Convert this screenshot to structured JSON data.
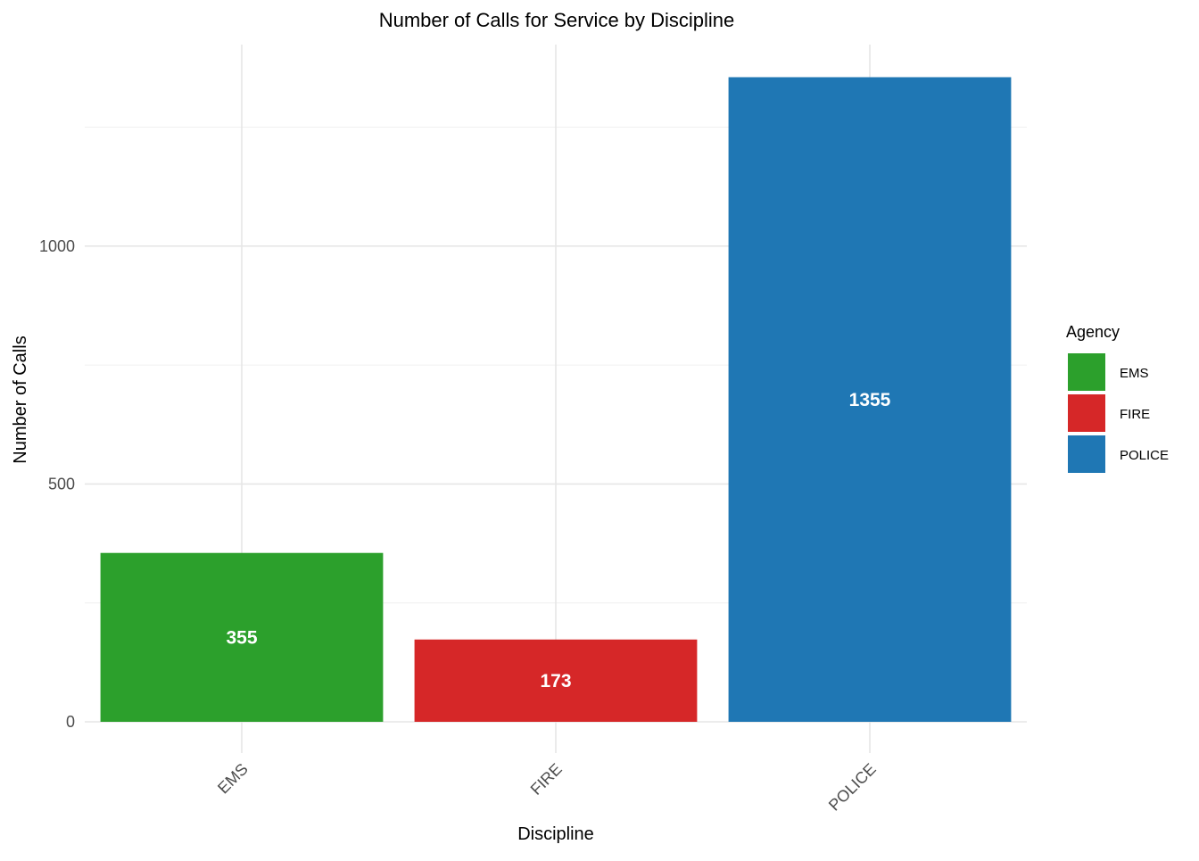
{
  "chart_data": {
    "type": "bar",
    "title": "Number of Calls for Service by Discipline",
    "xlabel": "Discipline",
    "ylabel": "Number of Calls",
    "categories": [
      "EMS",
      "FIRE",
      "POLICE"
    ],
    "values": [
      355,
      173,
      1355
    ],
    "data_labels": [
      "355",
      "173",
      "1355"
    ],
    "colors": [
      "#2ca02c",
      "#d62728",
      "#1f77b4"
    ],
    "ylim": [
      0,
      1420
    ],
    "yticks": [
      0,
      500,
      1000
    ],
    "ytick_labels": [
      "0",
      "500",
      "1000"
    ],
    "y_minor_ticks": [
      250,
      750,
      1250
    ],
    "grid": true,
    "legend": {
      "title": "Agency",
      "position": "right",
      "entries": [
        {
          "label": "EMS",
          "color": "#2ca02c"
        },
        {
          "label": "FIRE",
          "color": "#d62728"
        },
        {
          "label": "POLICE",
          "color": "#1f77b4"
        }
      ]
    }
  }
}
